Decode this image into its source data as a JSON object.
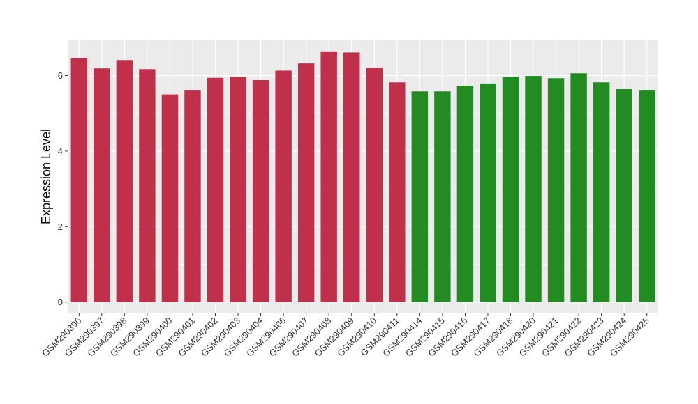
{
  "chart_data": {
    "type": "bar",
    "title": "",
    "xlabel": "",
    "ylabel": "Expression Level",
    "ylim": [
      -0.3,
      6.95
    ],
    "yticks": [
      0,
      2,
      4,
      6
    ],
    "grid": true,
    "legend": "none",
    "colors": {
      "group_1": "#C0304A",
      "group_2": "#228B22",
      "panel": "#EBEBEB",
      "gridline": "#FFFFFF"
    },
    "categories": [
      "GSM290396",
      "GSM290397",
      "GSM290398",
      "GSM290399",
      "GSM290400",
      "GSM290401",
      "GSM290402",
      "GSM290403",
      "GSM290404",
      "GSM290406",
      "GSM290407",
      "GSM290408",
      "GSM290409",
      "GSM290410",
      "GSM290411",
      "GSM290414",
      "GSM290415",
      "GSM290416",
      "GSM290417",
      "GSM290418",
      "GSM290420",
      "GSM290421",
      "GSM290422",
      "GSM290423",
      "GSM290424",
      "GSM290425"
    ],
    "values": [
      6.47,
      6.19,
      6.41,
      6.17,
      5.5,
      5.62,
      5.94,
      5.97,
      5.88,
      6.13,
      6.32,
      6.64,
      6.61,
      6.21,
      5.82,
      5.58,
      5.58,
      5.73,
      5.79,
      5.97,
      5.99,
      5.93,
      6.06,
      5.82,
      5.64,
      5.62
    ],
    "groups": [
      1,
      1,
      1,
      1,
      1,
      1,
      1,
      1,
      1,
      1,
      1,
      1,
      1,
      1,
      1,
      2,
      2,
      2,
      2,
      2,
      2,
      2,
      2,
      2,
      2,
      2
    ]
  }
}
